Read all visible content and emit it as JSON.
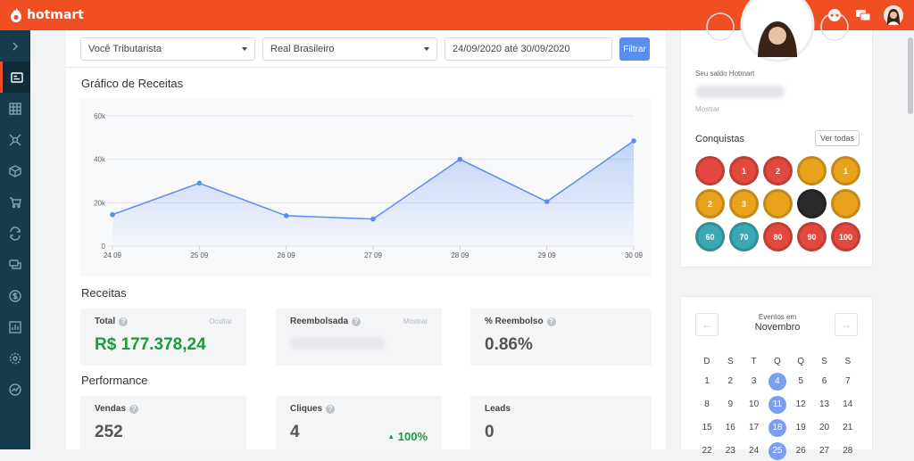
{
  "brand": {
    "name": "hotmart",
    "color": "#f04e23"
  },
  "topbar": {
    "icons": [
      "help-icon",
      "support-icon",
      "chat-icon",
      "avatar"
    ]
  },
  "sidebar": {
    "items": [
      "chevron-right-icon",
      "dashboard-icon",
      "grid-icon",
      "network-icon",
      "box-icon",
      "cart-icon",
      "refresh-icon",
      "messages-icon",
      "dollar-icon",
      "report-icon",
      "settings-icon",
      "analytics-icon"
    ]
  },
  "filters": {
    "account": "Você Tributarista",
    "currency": "Real Brasileiro",
    "date_range": "24/09/2020 até 30/09/2020",
    "button": "Filtrar"
  },
  "chart_title": "Gráfico de Receitas",
  "chart_data": {
    "type": "area",
    "title": "Gráfico de Receitas",
    "categories": [
      "24 09",
      "25 09",
      "26 09",
      "27 09",
      "28 09",
      "29 09",
      "30 09"
    ],
    "values": [
      14500,
      29000,
      14000,
      12500,
      40000,
      20500,
      48500
    ],
    "ylim": [
      0,
      60000
    ],
    "y_ticks": [
      0,
      20000,
      40000,
      60000
    ],
    "y_tick_labels": [
      "0",
      "20k",
      "40k",
      "60k"
    ],
    "grid": true,
    "color": "#5b8def"
  },
  "receitas": {
    "title": "Receitas",
    "total": {
      "label": "Total",
      "action": "Ocultar",
      "value": "R$ 177.378,24"
    },
    "reembolsada": {
      "label": "Reembolsada",
      "action": "Mostrar"
    },
    "pct_reembolso": {
      "label": "% Reembolso",
      "value": "0.86%"
    }
  },
  "performance": {
    "title": "Performance",
    "vendas": {
      "label": "Vendas",
      "value": "252"
    },
    "cliques": {
      "label": "Cliques",
      "value": "4",
      "delta": "100%"
    },
    "leads": {
      "label": "Leads",
      "value": "0"
    }
  },
  "profile": {
    "saldo_label": "Seu saldo Hotmart",
    "mostrar": "Mostrar",
    "conquistas": "Conquistas",
    "ver_todas": "Ver todas",
    "badges": [
      {
        "label": "",
        "color": "#e2483d"
      },
      {
        "label": "1",
        "color": "#e2483d"
      },
      {
        "label": "2",
        "color": "#e2483d"
      },
      {
        "label": "",
        "color": "#e8a21c"
      },
      {
        "label": "1",
        "color": "#e8a21c"
      },
      {
        "label": "2",
        "color": "#e8a21c"
      },
      {
        "label": "3",
        "color": "#e8a21c"
      },
      {
        "label": "",
        "color": "#e8a21c"
      },
      {
        "label": "",
        "color": "#2a2a2a"
      },
      {
        "label": "",
        "color": "#e8a21c"
      },
      {
        "label": "60",
        "color": "#3aa7b4"
      },
      {
        "label": "70",
        "color": "#3aa7b4"
      },
      {
        "label": "80",
        "color": "#e2483d"
      },
      {
        "label": "90",
        "color": "#e2483d"
      },
      {
        "label": "100",
        "color": "#e2483d"
      }
    ]
  },
  "calendar": {
    "label": "Eventos em",
    "month": "Novembro",
    "weekdays": [
      "D",
      "S",
      "T",
      "Q",
      "Q",
      "S",
      "S"
    ],
    "rows": [
      [
        "1",
        "2",
        "3",
        "4",
        "5",
        "6",
        "7"
      ],
      [
        "8",
        "9",
        "10",
        "11",
        "12",
        "13",
        "14"
      ],
      [
        "15",
        "16",
        "17",
        "18",
        "19",
        "20",
        "21"
      ],
      [
        "22",
        "23",
        "24",
        "25",
        "26",
        "27",
        "28"
      ]
    ],
    "highlighted": [
      "4",
      "11",
      "18",
      "25"
    ]
  }
}
